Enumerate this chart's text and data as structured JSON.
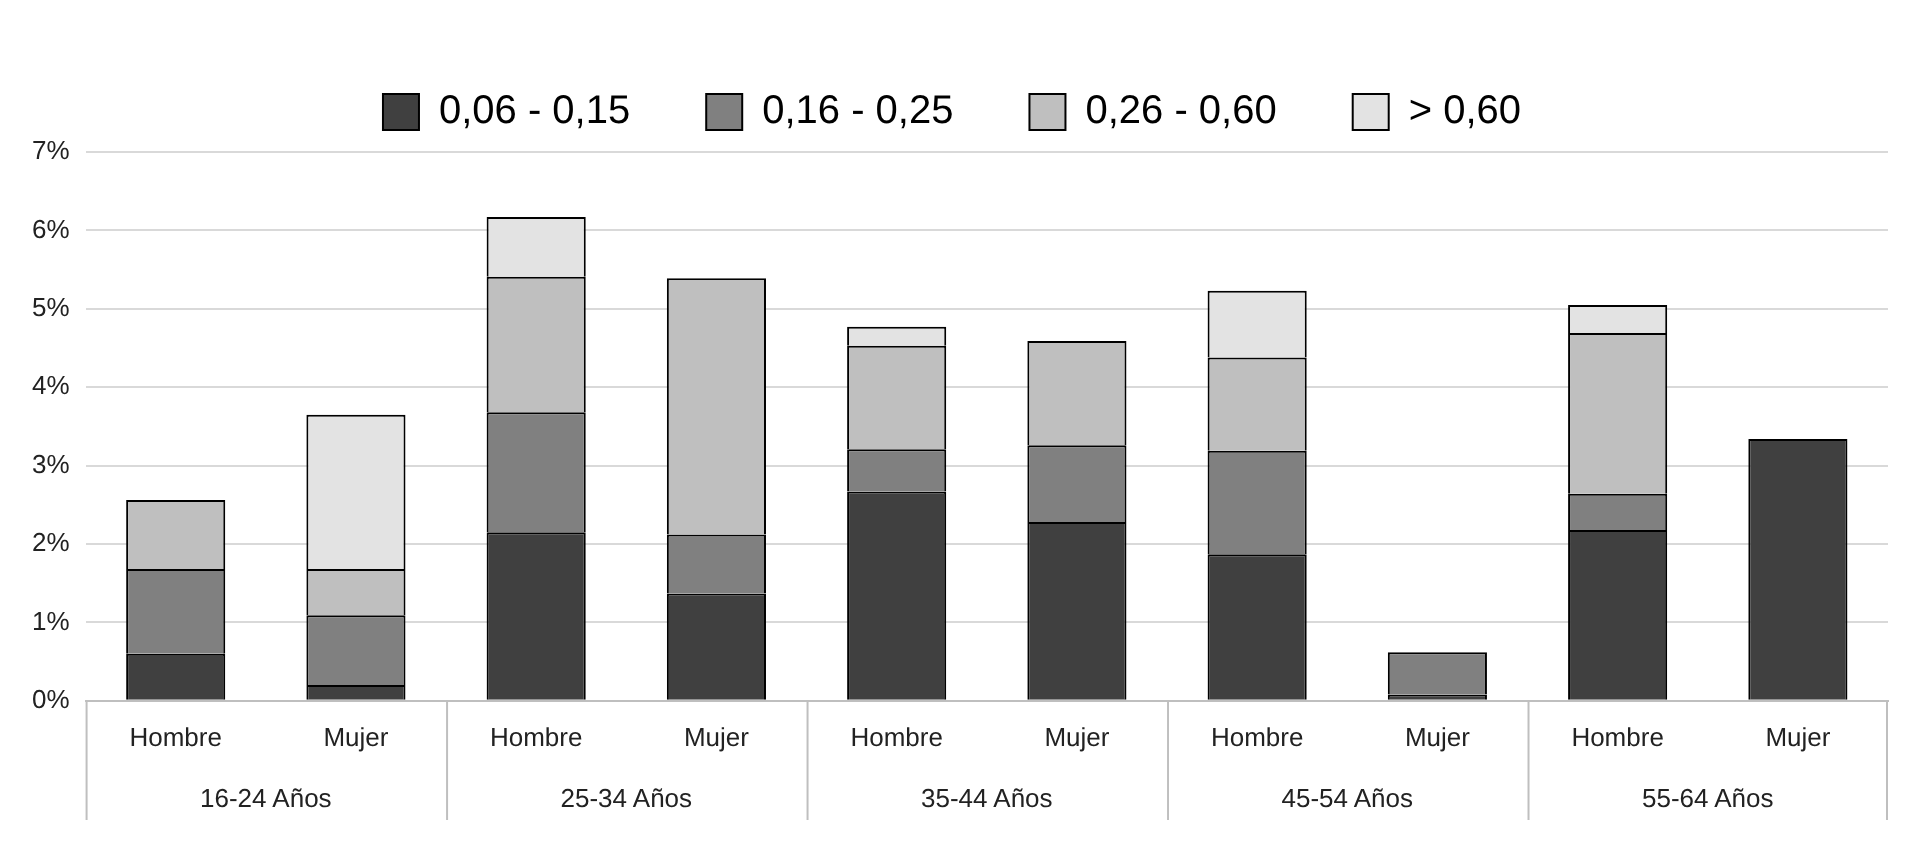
{
  "chart_data": {
    "type": "bar",
    "stacked": true,
    "categories": [
      "Hombre",
      "Mujer",
      "Hombre",
      "Mujer",
      "Hombre",
      "Mujer",
      "Hombre",
      "Mujer",
      "Hombre",
      "Mujer"
    ],
    "series": [
      {
        "name": "0,06 - 0,15",
        "color": "#404040",
        "values": [
          0.6,
          0.2,
          2.15,
          1.37,
          2.67,
          2.28,
          1.87,
          0.08,
          2.18,
          3.34
        ]
      },
      {
        "name": "0,16 - 0,25",
        "color": "#808080",
        "values": [
          1.08,
          0.89,
          1.53,
          0.75,
          0.54,
          0.98,
          1.32,
          0.54,
          0.46,
          0
        ]
      },
      {
        "name": "0,26 - 0,60",
        "color": "#bfbfbf",
        "values": [
          0.88,
          0.59,
          1.73,
          3.27,
          1.32,
          1.33,
          1.19,
          0,
          2.05,
          0
        ]
      },
      {
        "name": "> 0,60",
        "color": "#e3e3e3",
        "values": [
          0,
          1.97,
          0.76,
          0,
          0.24,
          0,
          0.85,
          0,
          0.36,
          0
        ]
      }
    ],
    "ylim": [
      0,
      7
    ],
    "yticks": [
      {
        "value": 0,
        "label": "0%"
      },
      {
        "value": 1,
        "label": "1%"
      },
      {
        "value": 2,
        "label": "2%"
      },
      {
        "value": 3,
        "label": "3%"
      },
      {
        "value": 4,
        "label": "4%"
      },
      {
        "value": 5,
        "label": "5%"
      },
      {
        "value": 6,
        "label": "6%"
      },
      {
        "value": 7,
        "label": "7%"
      }
    ],
    "grid": "y",
    "legend": "top",
    "annotations": [
      "16-24 Años",
      "25-34 Años",
      "35-44 Años",
      "45-54 Años",
      "55-64 Años"
    ]
  }
}
